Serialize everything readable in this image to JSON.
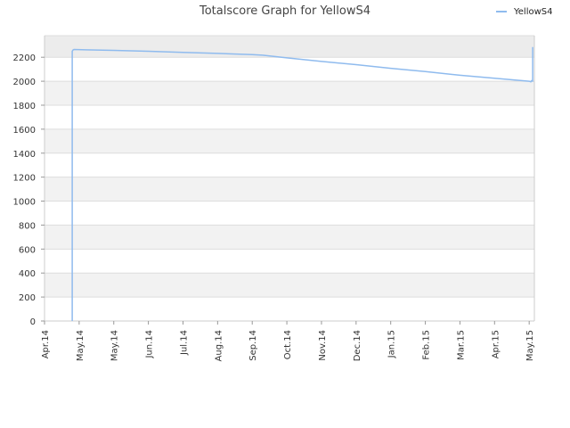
{
  "chart_data": {
    "type": "line",
    "title": "Totalscore Graph for YellowS4",
    "xlabel": "",
    "ylabel": "",
    "x_tick_labels": [
      "Apr.14",
      "May.14",
      "May.14",
      "Jun.14",
      "Jul.14",
      "Aug.14",
      "Sep.14",
      "Oct.14",
      "Nov.14",
      "Dec.14",
      "Jan.15",
      "Feb.15",
      "Mar.15",
      "Apr.15",
      "May.15"
    ],
    "x_tick_positions": [
      0,
      1,
      2,
      3,
      4,
      5,
      6,
      7,
      8,
      9,
      10,
      11,
      12,
      13,
      14
    ],
    "x_range": [
      0,
      14.15
    ],
    "y_ticks": [
      0,
      200,
      400,
      600,
      800,
      1000,
      1200,
      1400,
      1600,
      1800,
      2000,
      2200
    ],
    "ylim": [
      0,
      2380
    ],
    "grid": true,
    "legend_position": "top-right",
    "colors": {
      "line": "#8fbbee",
      "band": "#f2f2f2",
      "grid": "#dddddd",
      "axis": "#cccccc"
    },
    "series": [
      {
        "name": "YellowS4",
        "x": [
          0.8,
          0.8,
          0.82,
          0.85,
          1.2,
          2,
          3,
          4,
          5,
          6,
          6.3,
          7,
          8,
          9,
          10,
          11,
          12,
          13,
          14,
          14.05,
          14.07,
          14.1,
          14.1
        ],
        "y": [
          0,
          2250,
          2260,
          2265,
          2262,
          2257,
          2250,
          2240,
          2232,
          2222,
          2217,
          2195,
          2165,
          2138,
          2108,
          2080,
          2050,
          2025,
          2000,
          1995,
          2005,
          2000,
          2285
        ]
      }
    ]
  }
}
